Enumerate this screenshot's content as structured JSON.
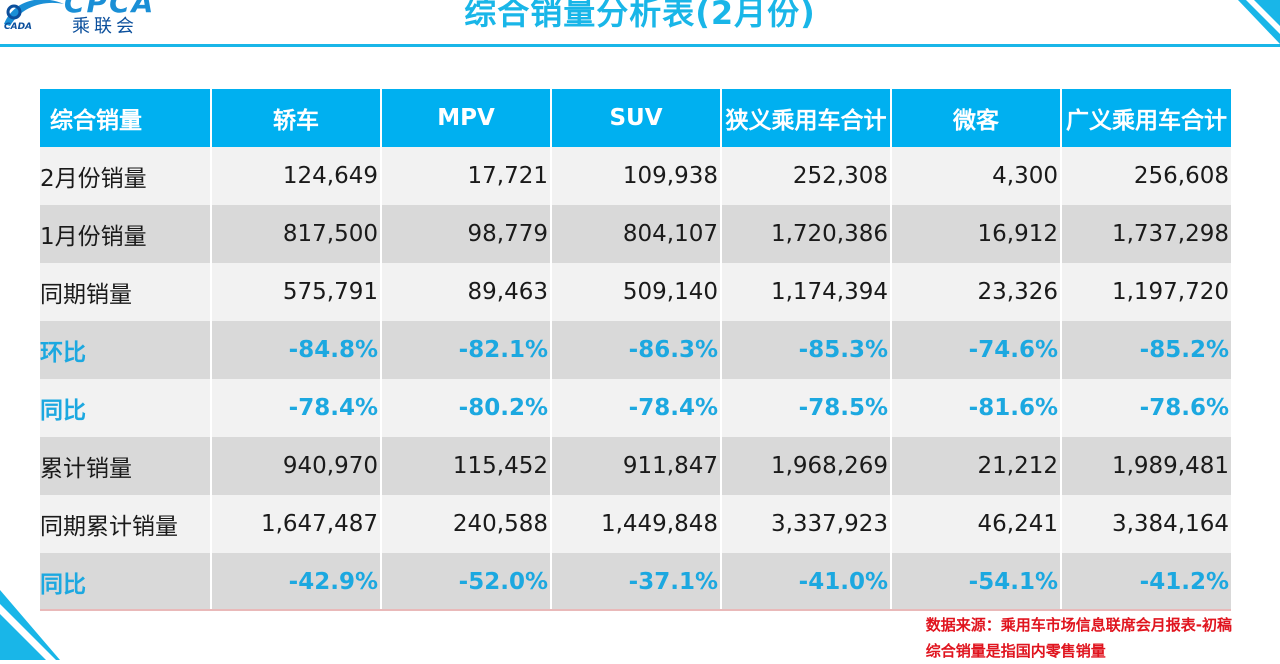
{
  "header": {
    "logo_latin": "CPCA",
    "logo_chinese": "乘联会",
    "logo_small": "CADA",
    "title": "综合销量分析表(2月份)"
  },
  "table": {
    "columns": [
      "综合销量",
      "轿车",
      "MPV",
      "SUV",
      "狭义乘用车合计",
      "微客",
      "广义乘用车合计"
    ],
    "rows": [
      {
        "label": "2月份销量",
        "values": [
          "124,649",
          "17,721",
          "109,938",
          "252,308",
          "4,300",
          "256,608"
        ],
        "highlight": false
      },
      {
        "label": "1月份销量",
        "values": [
          "817,500",
          "98,779",
          "804,107",
          "1,720,386",
          "16,912",
          "1,737,298"
        ],
        "highlight": false
      },
      {
        "label": "同期销量",
        "values": [
          "575,791",
          "89,463",
          "509,140",
          "1,174,394",
          "23,326",
          "1,197,720"
        ],
        "highlight": false
      },
      {
        "label": "环比",
        "values": [
          "-84.8%",
          "-82.1%",
          "-86.3%",
          "-85.3%",
          "-74.6%",
          "-85.2%"
        ],
        "highlight": true
      },
      {
        "label": "同比",
        "values": [
          "-78.4%",
          "-80.2%",
          "-78.4%",
          "-78.5%",
          "-81.6%",
          "-78.6%"
        ],
        "highlight": true
      },
      {
        "label": "累计销量",
        "values": [
          "940,970",
          "115,452",
          "911,847",
          "1,968,269",
          "21,212",
          "1,989,481"
        ],
        "highlight": false
      },
      {
        "label": "同期累计销量",
        "values": [
          "1,647,487",
          "240,588",
          "1,449,848",
          "3,337,923",
          "46,241",
          "3,384,164"
        ],
        "highlight": false
      },
      {
        "label": "同比",
        "values": [
          "-42.9%",
          "-52.0%",
          "-37.1%",
          "-41.0%",
          "-54.1%",
          "-41.2%"
        ],
        "highlight": true
      }
    ]
  },
  "notes": {
    "source": "数据来源：乘用车市场信息联席会月报表-初稿",
    "definition": "综合销量是指国内零售销量"
  },
  "colors": {
    "header_bg": "#00b0f0",
    "title": "#19b6e8",
    "highlight_text": "#1ca8e0",
    "note_text": "#e0141e"
  }
}
